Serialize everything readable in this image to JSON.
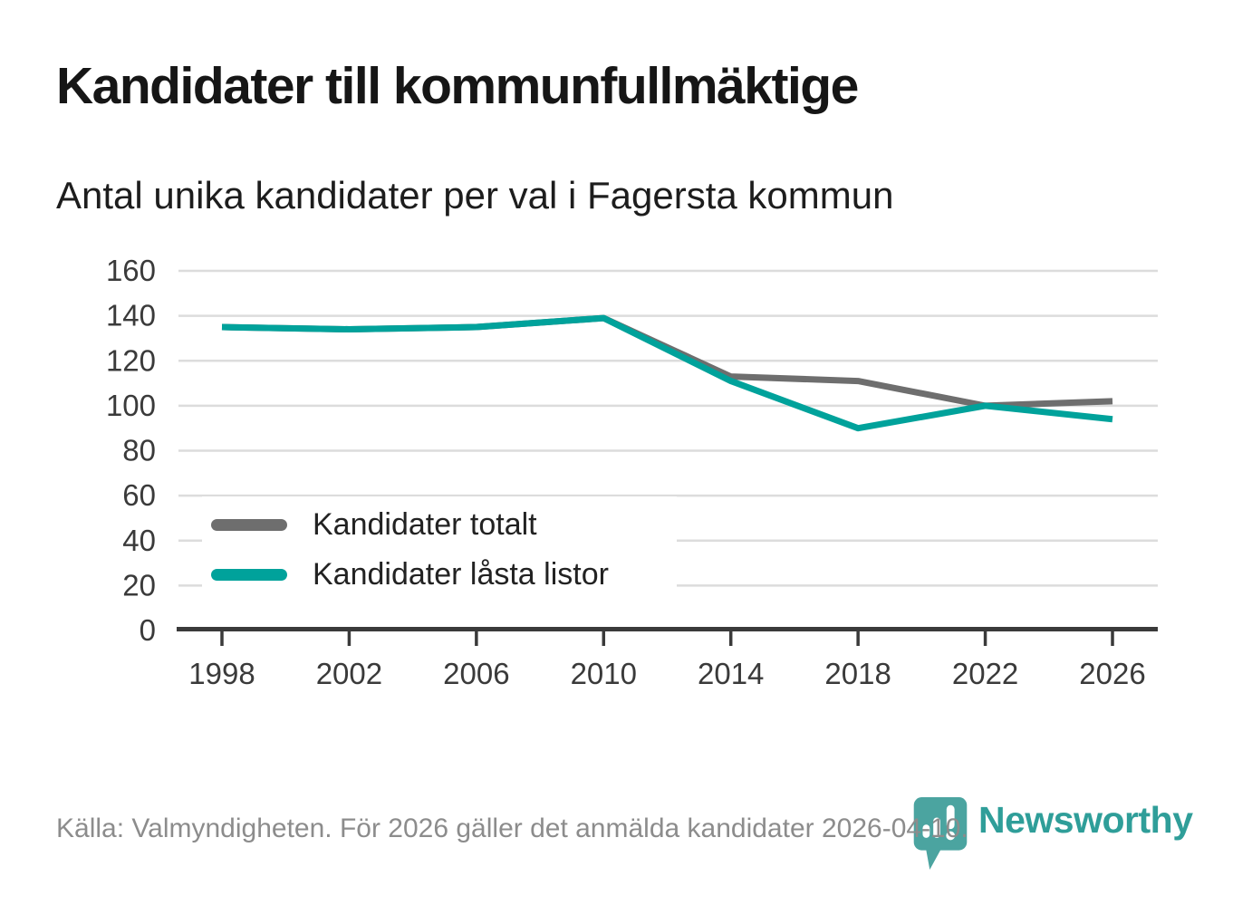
{
  "header": {
    "title": "Kandidater till kommunfullmäktige",
    "subtitle": "Antal unika kandidater per val i Fagersta kommun"
  },
  "chart_data": {
    "type": "line",
    "x": [
      1998,
      2002,
      2006,
      2010,
      2014,
      2018,
      2022,
      2026
    ],
    "series": [
      {
        "name": "Kandidater totalt",
        "color": "#6e6e6e",
        "values": [
          135,
          134,
          135,
          139,
          113,
          111,
          100,
          102
        ]
      },
      {
        "name": "Kandidater låsta listor",
        "color": "#00a29b",
        "values": [
          135,
          134,
          135,
          139,
          111,
          90,
          100,
          94
        ]
      }
    ],
    "ylim": [
      0,
      160
    ],
    "yticks": [
      0,
      20,
      40,
      60,
      80,
      100,
      120,
      140,
      160
    ],
    "grid": true,
    "legend_position": "inside-bottom-left",
    "colors": {
      "axis": "#3a3a3a",
      "grid": "#dcdcdc"
    }
  },
  "footer": {
    "source_text": "Källa: Valmyndigheten. För 2026 gäller det anmälda kandidater 2026-04-10."
  },
  "logo": {
    "text": "Newsworthy",
    "icon": "newsworthy-pin-barchart-icon",
    "icon_color": "#4ba4a0",
    "text_color": "#2f9e99"
  }
}
